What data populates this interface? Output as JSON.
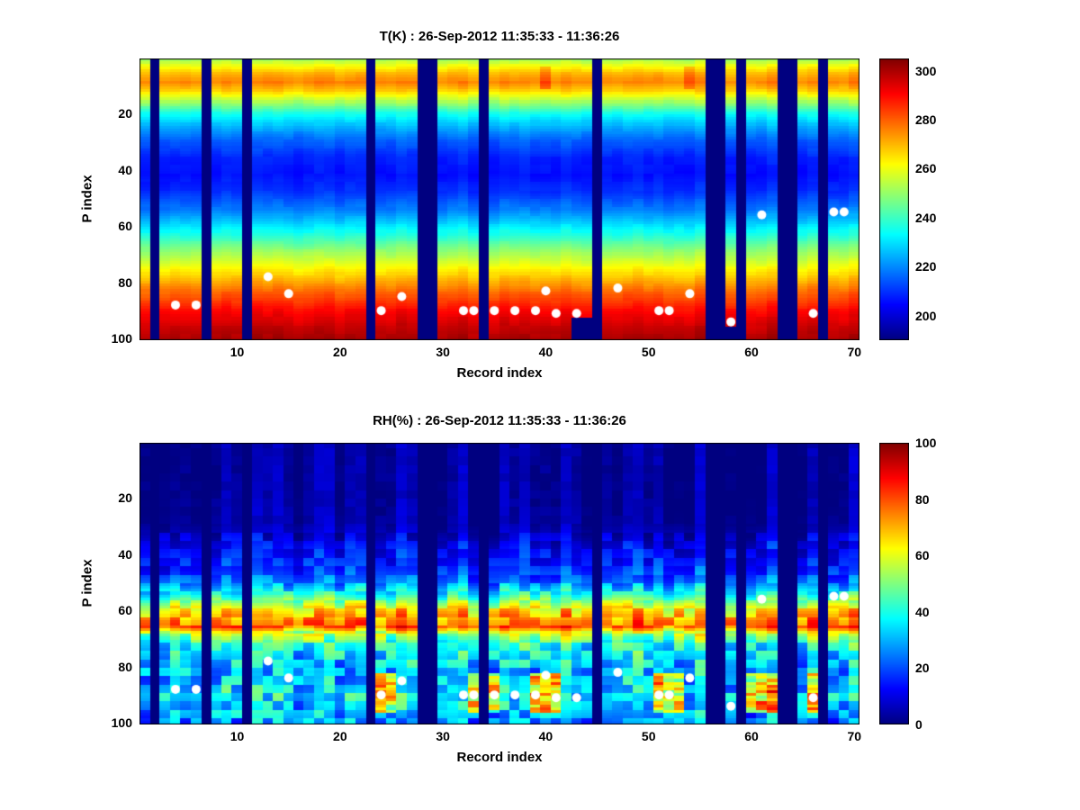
{
  "chart_data": [
    {
      "type": "heatmap",
      "title": "T(K) : 26-Sep-2012 11:35:33 - 11:36:26",
      "xlabel": "Record index",
      "ylabel": "P index",
      "x_range": [
        1,
        70
      ],
      "y_range": [
        1,
        100
      ],
      "y_axis_reversed": true,
      "grid": false,
      "x_ticks": [
        10,
        20,
        30,
        40,
        50,
        60,
        70
      ],
      "y_ticks": [
        20,
        40,
        60,
        80,
        100
      ],
      "colormap": "jet",
      "color_scale": [
        190,
        305
      ],
      "colorbar_ticks": [
        200,
        220,
        240,
        260,
        280,
        300
      ],
      "profile_points": {
        "p": [
          1,
          3,
          6,
          9,
          12,
          16,
          20,
          25,
          30,
          36,
          42,
          48,
          54,
          60,
          66,
          72,
          78,
          84,
          90,
          96,
          100
        ],
        "value": [
          252,
          260,
          270,
          276,
          268,
          252,
          236,
          224,
          215,
          208,
          206,
          210,
          218,
          230,
          243,
          256,
          268,
          280,
          290,
          297,
          300
        ]
      },
      "column_noise": 1.5,
      "noise_regions": [
        {
          "p_max": 100,
          "amp": 1.2
        }
      ],
      "top_warm_spots": {
        "records": [
          40,
          54
        ],
        "p_range": [
          4,
          11
        ],
        "boost": 8
      },
      "bottom_cut": {
        "43": 92,
        "44": 92,
        "58": 95
      },
      "missing_records": [
        2,
        7,
        11,
        23,
        28,
        29,
        34,
        45,
        56,
        57,
        59,
        63,
        64,
        67
      ],
      "markers": [
        [
          4,
          88
        ],
        [
          6,
          88
        ],
        [
          13,
          78
        ],
        [
          15,
          84
        ],
        [
          24,
          90
        ],
        [
          26,
          85
        ],
        [
          32,
          90
        ],
        [
          33,
          90
        ],
        [
          35,
          90
        ],
        [
          37,
          90
        ],
        [
          39,
          90
        ],
        [
          40,
          83
        ],
        [
          41,
          91
        ],
        [
          43,
          91
        ],
        [
          47,
          82
        ],
        [
          51,
          90
        ],
        [
          52,
          90
        ],
        [
          54,
          84
        ],
        [
          58,
          94
        ],
        [
          61,
          56
        ],
        [
          66,
          91
        ],
        [
          68,
          55
        ],
        [
          69,
          55
        ]
      ],
      "marker_color": "#ffffff"
    },
    {
      "type": "heatmap",
      "title": "RH(%) : 26-Sep-2012 11:35:33 - 11:36:26",
      "xlabel": "Record index",
      "ylabel": "P index",
      "x_range": [
        1,
        70
      ],
      "y_range": [
        1,
        100
      ],
      "y_axis_reversed": true,
      "grid": false,
      "x_ticks": [
        10,
        20,
        30,
        40,
        50,
        60,
        70
      ],
      "y_ticks": [
        20,
        40,
        60,
        80,
        100
      ],
      "colormap": "jet",
      "color_scale": [
        0,
        100
      ],
      "colorbar_ticks": [
        0,
        20,
        40,
        60,
        80,
        100
      ],
      "profile_points": {
        "p": [
          1,
          20,
          30,
          34,
          38,
          42,
          46,
          50,
          53,
          56,
          59,
          62,
          64,
          66,
          68,
          71,
          74,
          78,
          82,
          86,
          90,
          95,
          100
        ],
        "value": [
          3,
          3,
          4,
          8,
          12,
          15,
          18,
          24,
          34,
          48,
          62,
          70,
          76,
          78,
          58,
          44,
          40,
          34,
          30,
          33,
          36,
          32,
          26
        ]
      },
      "column_noise": 5,
      "noise_regions": [
        {
          "p_max": 32,
          "amp": 2
        },
        {
          "p_max": 50,
          "amp": 7
        },
        {
          "p_max": 58,
          "amp": 9
        },
        {
          "p_max": 68,
          "amp": 10
        },
        {
          "p_max": 100,
          "amp": 13
        }
      ],
      "bottom_hotspots": {
        "records": [
          24,
          25,
          33,
          34,
          35,
          39,
          40,
          41,
          51,
          52,
          53,
          60,
          61,
          62,
          66
        ],
        "p_range": [
          83,
          96
        ],
        "boost": 45
      },
      "missing_records": [
        2,
        7,
        11,
        23,
        28,
        29,
        34,
        45,
        56,
        57,
        59,
        63,
        64,
        67
      ],
      "markers": [
        [
          4,
          88
        ],
        [
          6,
          88
        ],
        [
          13,
          78
        ],
        [
          15,
          84
        ],
        [
          24,
          90
        ],
        [
          26,
          85
        ],
        [
          32,
          90
        ],
        [
          33,
          90
        ],
        [
          35,
          90
        ],
        [
          37,
          90
        ],
        [
          39,
          90
        ],
        [
          40,
          83
        ],
        [
          41,
          91
        ],
        [
          43,
          91
        ],
        [
          47,
          82
        ],
        [
          51,
          90
        ],
        [
          52,
          90
        ],
        [
          54,
          84
        ],
        [
          58,
          94
        ],
        [
          61,
          56
        ],
        [
          66,
          91
        ],
        [
          68,
          55
        ],
        [
          69,
          55
        ]
      ],
      "marker_color": "#ffffff"
    }
  ]
}
